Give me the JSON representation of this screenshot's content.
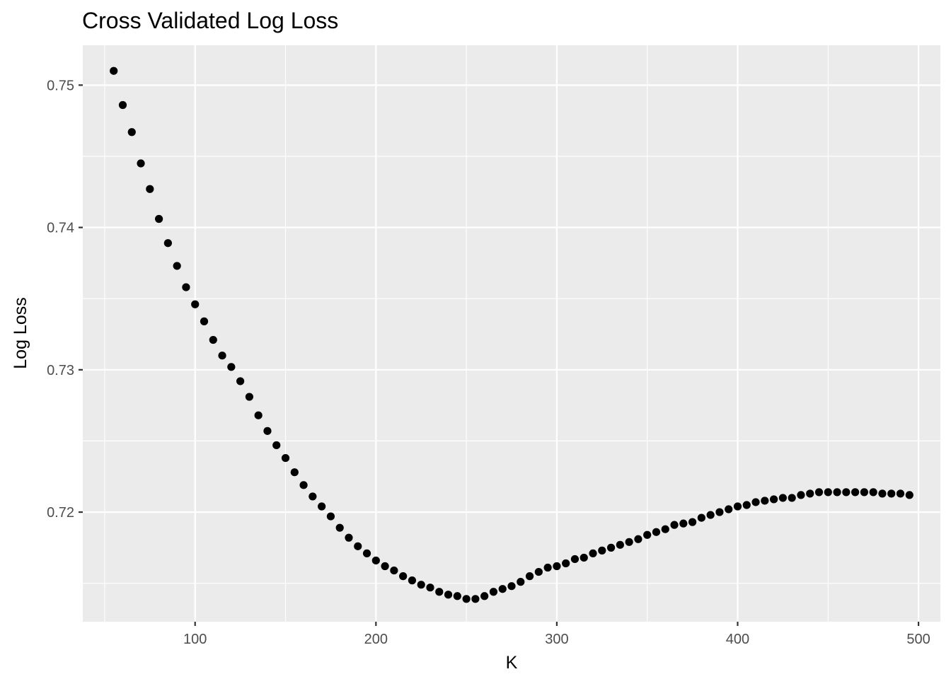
{
  "chart_data": {
    "type": "scatter",
    "title": "Cross Validated Log Loss",
    "xlabel": "K",
    "ylabel": "Log Loss",
    "xlim": [
      37.9,
      512.1
    ],
    "ylim": [
      0.7123,
      0.7528
    ],
    "x_ticks": [
      100,
      200,
      300,
      400,
      500
    ],
    "x_tick_labels": [
      "100",
      "200",
      "300",
      "400",
      "500"
    ],
    "x_minor_ticks": [
      50,
      150,
      250,
      350,
      450
    ],
    "y_ticks": [
      0.72,
      0.73,
      0.74,
      0.75
    ],
    "y_tick_labels": [
      "0.72",
      "0.73",
      "0.74",
      "0.75"
    ],
    "y_minor_ticks": [
      0.715,
      0.725,
      0.735,
      0.745
    ],
    "grid": true,
    "point_color": "#000000",
    "panel_background": "#ebebeb",
    "grid_color": "#ffffff",
    "x": [
      55,
      60,
      65,
      70,
      75,
      80,
      85,
      90,
      95,
      100,
      105,
      110,
      115,
      120,
      125,
      130,
      135,
      140,
      145,
      150,
      155,
      160,
      165,
      170,
      175,
      180,
      185,
      190,
      195,
      200,
      205,
      210,
      215,
      220,
      225,
      230,
      235,
      240,
      245,
      250,
      255,
      260,
      265,
      270,
      275,
      280,
      285,
      290,
      295,
      300,
      305,
      310,
      315,
      320,
      325,
      330,
      335,
      340,
      345,
      350,
      355,
      360,
      365,
      370,
      375,
      380,
      385,
      390,
      395,
      400,
      405,
      410,
      415,
      420,
      425,
      430,
      435,
      440,
      445,
      450,
      455,
      460,
      465,
      470,
      475,
      480,
      485,
      490,
      495
    ],
    "y": [
      0.751,
      0.7486,
      0.7467,
      0.7445,
      0.7427,
      0.7406,
      0.7389,
      0.7373,
      0.7358,
      0.7346,
      0.7334,
      0.7321,
      0.731,
      0.7302,
      0.7292,
      0.7281,
      0.7268,
      0.7257,
      0.7247,
      0.7238,
      0.7228,
      0.7219,
      0.7211,
      0.7204,
      0.7197,
      0.7189,
      0.7182,
      0.7176,
      0.7171,
      0.7166,
      0.7162,
      0.7159,
      0.7155,
      0.7152,
      0.7149,
      0.7147,
      0.7144,
      0.7142,
      0.7141,
      0.7139,
      0.7139,
      0.7141,
      0.7144,
      0.7146,
      0.7148,
      0.7151,
      0.7155,
      0.7158,
      0.7161,
      0.7162,
      0.7164,
      0.7167,
      0.7168,
      0.7171,
      0.7173,
      0.7175,
      0.7177,
      0.7179,
      0.7181,
      0.7184,
      0.7186,
      0.7188,
      0.7191,
      0.7192,
      0.7193,
      0.7196,
      0.7198,
      0.72,
      0.7202,
      0.7204,
      0.7205,
      0.7207,
      0.7208,
      0.7209,
      0.721,
      0.721,
      0.7212,
      0.7213,
      0.7214,
      0.7214,
      0.7214,
      0.7214,
      0.7214,
      0.7214,
      0.7214,
      0.7213,
      0.7213,
      0.7213,
      0.7212
    ]
  }
}
